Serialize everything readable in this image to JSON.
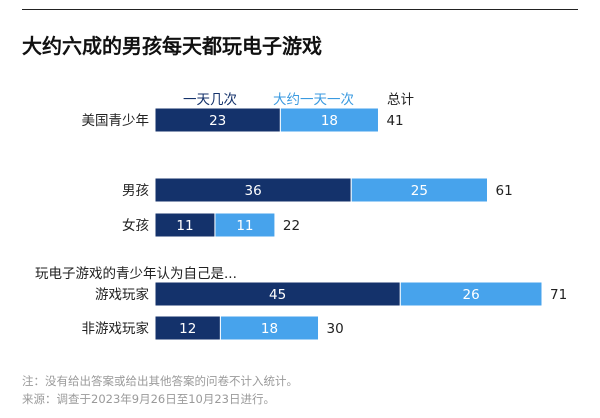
{
  "title": "大约六成的男孩每天都玩电子游戏",
  "legend": {
    "often": "一天几次",
    "daily": "大约一天一次",
    "total": "总计"
  },
  "subhead": "玩电子游戏的青少年认为自己是...",
  "notes": {
    "note": "注：没有给出答案或给出其他答案的问卷不计入统计。",
    "source": "来源：调查于2023年9月26日至10月23日进行。"
  },
  "colors": {
    "often": "#14326b",
    "daily": "#47a3ec",
    "text": "#222222"
  },
  "chart_data": {
    "type": "bar",
    "orientation": "horizontal",
    "stacked": true,
    "categories": [
      "美国青少年",
      "男孩",
      "女孩",
      "游戏玩家",
      "非游戏玩家"
    ],
    "series": [
      {
        "name": "一天几次",
        "values": [
          23,
          36,
          11,
          45,
          12
        ]
      },
      {
        "name": "大约一天一次",
        "values": [
          18,
          25,
          11,
          26,
          18
        ]
      }
    ],
    "totals": [
      41,
      61,
      22,
      71,
      30
    ],
    "xlim": [
      0,
      71
    ],
    "grid": false,
    "legend": "top"
  }
}
